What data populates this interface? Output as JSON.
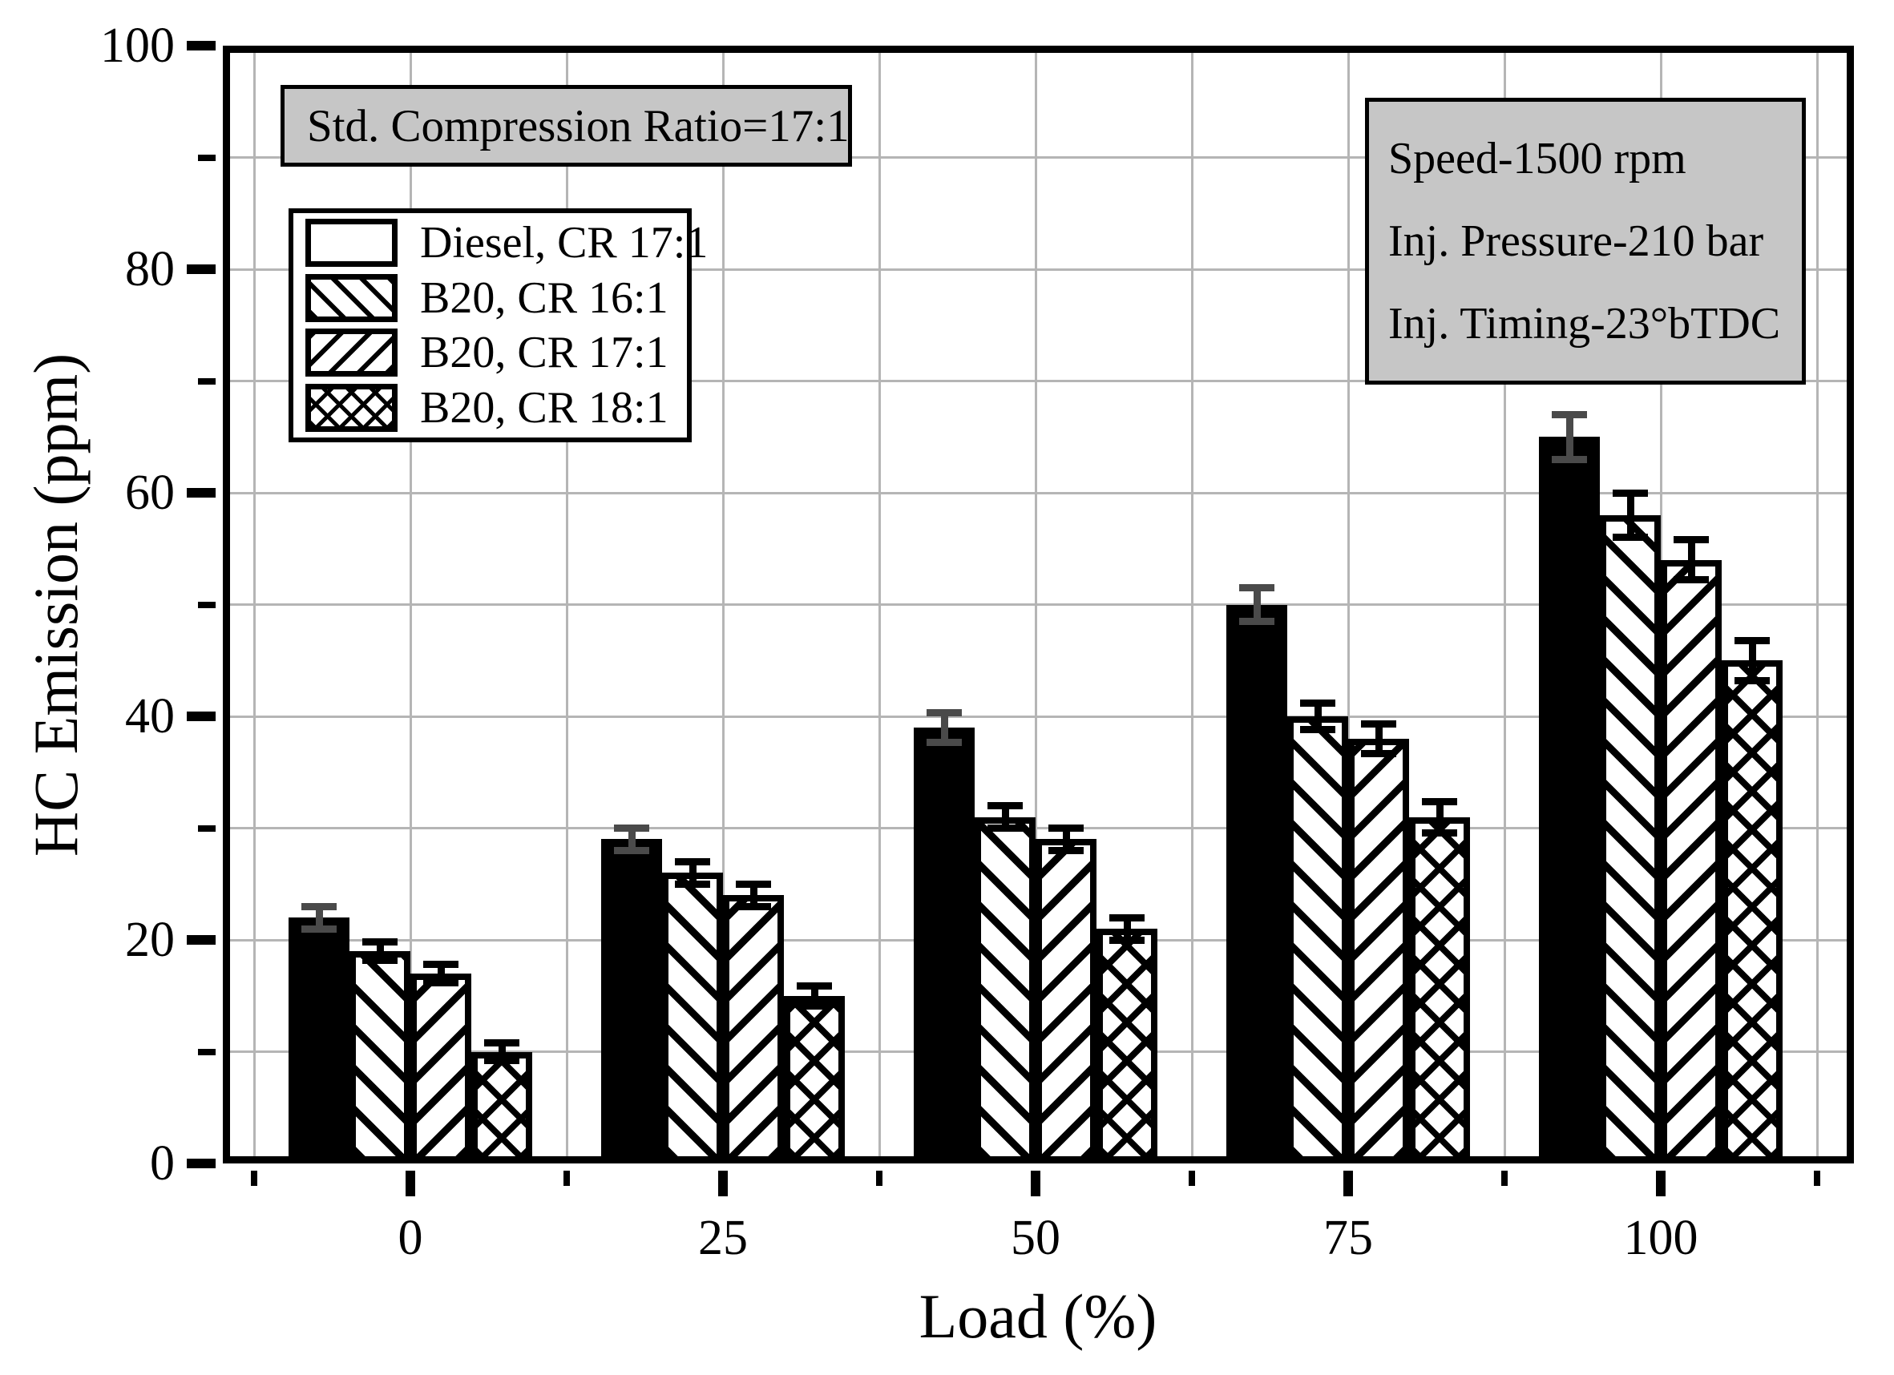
{
  "chart_data": {
    "type": "bar",
    "title": "",
    "xlabel": "Load (%)",
    "ylabel": "HC Emission (ppm)",
    "ylim": [
      0,
      100
    ],
    "y_major_step": 20,
    "y_minor_step": 10,
    "grid": true,
    "legend_position": "upper-left",
    "categories": [
      0,
      25,
      50,
      75,
      100
    ],
    "series": [
      {
        "name": "Diesel, CR 17:1",
        "pattern": "solid",
        "errorbar_color": "#4a4a4a",
        "values": [
          22,
          29,
          39,
          50,
          65
        ],
        "errors": [
          1,
          1,
          1.3,
          1.5,
          2
        ]
      },
      {
        "name": "B20, CR 16:1",
        "pattern": "diag-forward",
        "errorbar_color": "#000000",
        "values": [
          19,
          26,
          31,
          40,
          58
        ],
        "errors": [
          0.8,
          1,
          1,
          1.2,
          2
        ]
      },
      {
        "name": "B20, CR 17:1",
        "pattern": "diag-backward",
        "errorbar_color": "#000000",
        "values": [
          17,
          24,
          29,
          38,
          54
        ],
        "errors": [
          0.8,
          1,
          1,
          1.3,
          1.8
        ]
      },
      {
        "name": "B20, CR 18:1",
        "pattern": "crosshatch",
        "errorbar_color": "#000000",
        "values": [
          10,
          15,
          21,
          31,
          45
        ],
        "errors": [
          0.8,
          0.9,
          1,
          1.4,
          1.8
        ]
      }
    ]
  },
  "axes": {
    "y_tick_labels": [
      "0",
      "20",
      "40",
      "60",
      "80",
      "100"
    ],
    "x_tick_labels": [
      "0",
      "25",
      "50",
      "75",
      "100"
    ]
  },
  "annotations": {
    "std_ratio_box": "Std. Compression Ratio=17:1",
    "conditions_box": [
      "Speed-1500 rpm",
      "Inj. Pressure-210 bar",
      "Inj. Timing-23°bTDC"
    ]
  },
  "colors": {
    "bar_fill": "#000000",
    "gridline": "#b5b5b5",
    "annotation_bg": "#c6c6c6",
    "frame": "#000000",
    "diesel_errorbar": "#4a4a4a",
    "errorbar": "#000000"
  }
}
